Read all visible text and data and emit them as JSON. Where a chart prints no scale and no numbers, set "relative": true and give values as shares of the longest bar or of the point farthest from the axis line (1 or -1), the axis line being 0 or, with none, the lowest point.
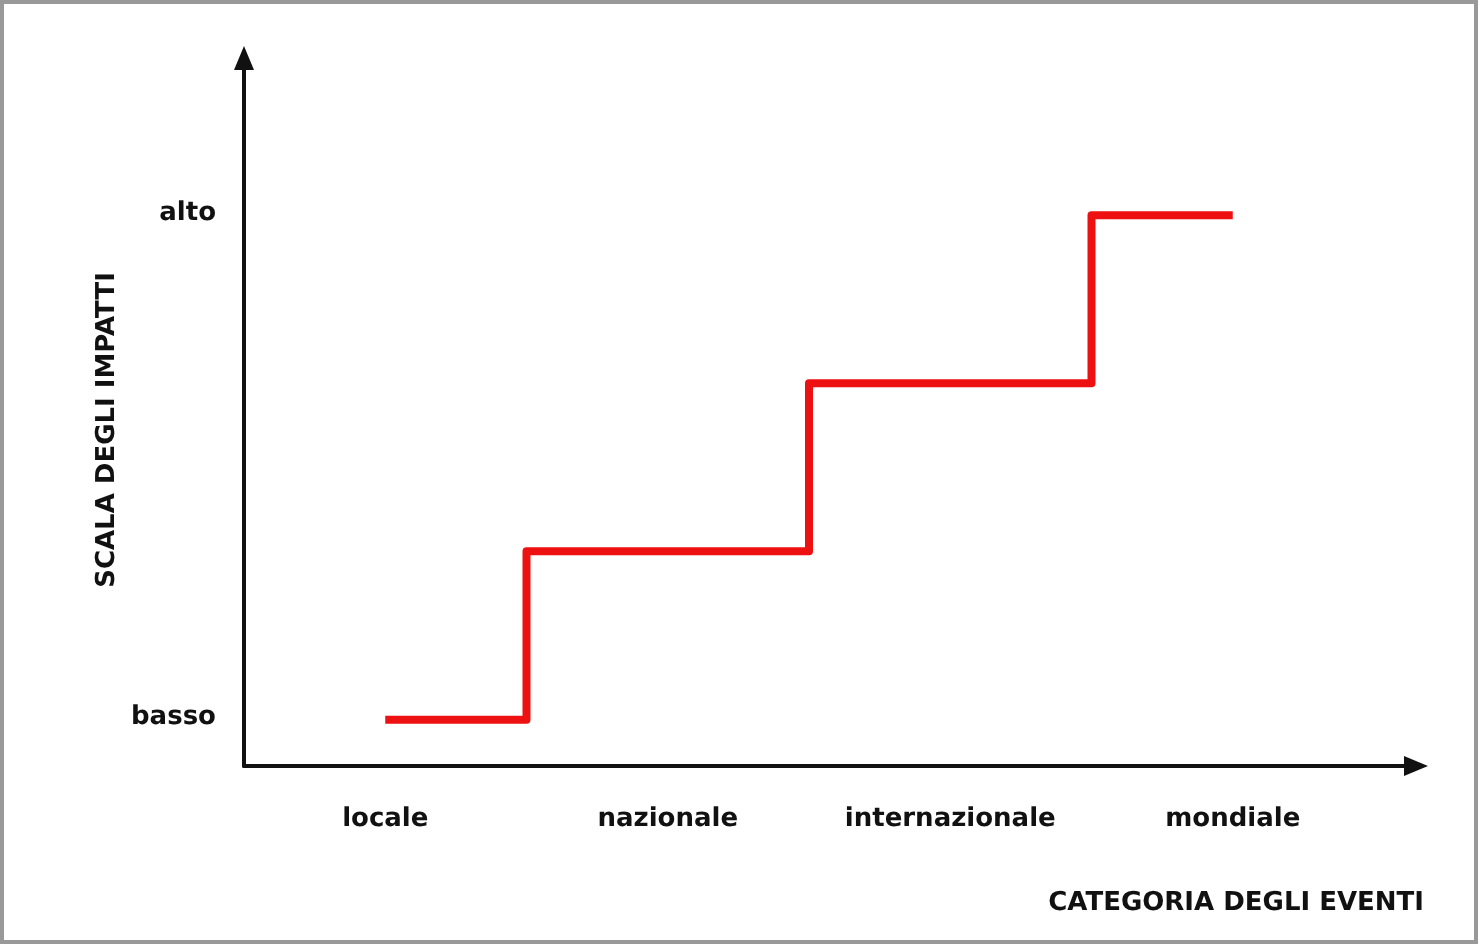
{
  "chart_data": {
    "type": "step",
    "relative": true,
    "xlabel": "CATEGORIA DEGLI EVENTI",
    "ylabel": "SCALA DEGLI IMPATTI",
    "categories": [
      "locale",
      "nazionale",
      "internazionale",
      "mondiale"
    ],
    "series": [
      {
        "color": "#ee1111",
        "values": [
          0.084,
          0.39,
          0.695,
          1
        ]
      }
    ],
    "annotations": [
      "basso",
      "alto"
    ]
  }
}
